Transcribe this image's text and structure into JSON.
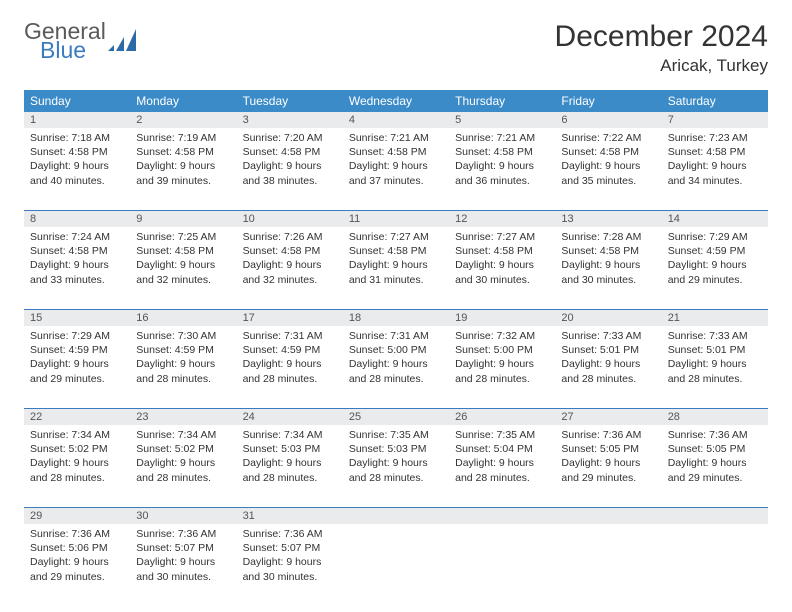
{
  "logo": {
    "general": "General",
    "blue": "Blue"
  },
  "title": "December 2024",
  "location": "Aricak, Turkey",
  "weekdays": [
    "Sunday",
    "Monday",
    "Tuesday",
    "Wednesday",
    "Thursday",
    "Friday",
    "Saturday"
  ],
  "colors": {
    "header_bg": "#3b8bc9",
    "header_text": "#ffffff",
    "daynum_bg": "#e9ebed",
    "rule": "#3b7bbf",
    "logo_blue": "#3b7bbf",
    "text": "#333333"
  },
  "weeks": [
    [
      {
        "n": "1",
        "sr": "7:18 AM",
        "ss": "4:58 PM",
        "dl": "9 hours and 40 minutes."
      },
      {
        "n": "2",
        "sr": "7:19 AM",
        "ss": "4:58 PM",
        "dl": "9 hours and 39 minutes."
      },
      {
        "n": "3",
        "sr": "7:20 AM",
        "ss": "4:58 PM",
        "dl": "9 hours and 38 minutes."
      },
      {
        "n": "4",
        "sr": "7:21 AM",
        "ss": "4:58 PM",
        "dl": "9 hours and 37 minutes."
      },
      {
        "n": "5",
        "sr": "7:21 AM",
        "ss": "4:58 PM",
        "dl": "9 hours and 36 minutes."
      },
      {
        "n": "6",
        "sr": "7:22 AM",
        "ss": "4:58 PM",
        "dl": "9 hours and 35 minutes."
      },
      {
        "n": "7",
        "sr": "7:23 AM",
        "ss": "4:58 PM",
        "dl": "9 hours and 34 minutes."
      }
    ],
    [
      {
        "n": "8",
        "sr": "7:24 AM",
        "ss": "4:58 PM",
        "dl": "9 hours and 33 minutes."
      },
      {
        "n": "9",
        "sr": "7:25 AM",
        "ss": "4:58 PM",
        "dl": "9 hours and 32 minutes."
      },
      {
        "n": "10",
        "sr": "7:26 AM",
        "ss": "4:58 PM",
        "dl": "9 hours and 32 minutes."
      },
      {
        "n": "11",
        "sr": "7:27 AM",
        "ss": "4:58 PM",
        "dl": "9 hours and 31 minutes."
      },
      {
        "n": "12",
        "sr": "7:27 AM",
        "ss": "4:58 PM",
        "dl": "9 hours and 30 minutes."
      },
      {
        "n": "13",
        "sr": "7:28 AM",
        "ss": "4:58 PM",
        "dl": "9 hours and 30 minutes."
      },
      {
        "n": "14",
        "sr": "7:29 AM",
        "ss": "4:59 PM",
        "dl": "9 hours and 29 minutes."
      }
    ],
    [
      {
        "n": "15",
        "sr": "7:29 AM",
        "ss": "4:59 PM",
        "dl": "9 hours and 29 minutes."
      },
      {
        "n": "16",
        "sr": "7:30 AM",
        "ss": "4:59 PM",
        "dl": "9 hours and 28 minutes."
      },
      {
        "n": "17",
        "sr": "7:31 AM",
        "ss": "4:59 PM",
        "dl": "9 hours and 28 minutes."
      },
      {
        "n": "18",
        "sr": "7:31 AM",
        "ss": "5:00 PM",
        "dl": "9 hours and 28 minutes."
      },
      {
        "n": "19",
        "sr": "7:32 AM",
        "ss": "5:00 PM",
        "dl": "9 hours and 28 minutes."
      },
      {
        "n": "20",
        "sr": "7:33 AM",
        "ss": "5:01 PM",
        "dl": "9 hours and 28 minutes."
      },
      {
        "n": "21",
        "sr": "7:33 AM",
        "ss": "5:01 PM",
        "dl": "9 hours and 28 minutes."
      }
    ],
    [
      {
        "n": "22",
        "sr": "7:34 AM",
        "ss": "5:02 PM",
        "dl": "9 hours and 28 minutes."
      },
      {
        "n": "23",
        "sr": "7:34 AM",
        "ss": "5:02 PM",
        "dl": "9 hours and 28 minutes."
      },
      {
        "n": "24",
        "sr": "7:34 AM",
        "ss": "5:03 PM",
        "dl": "9 hours and 28 minutes."
      },
      {
        "n": "25",
        "sr": "7:35 AM",
        "ss": "5:03 PM",
        "dl": "9 hours and 28 minutes."
      },
      {
        "n": "26",
        "sr": "7:35 AM",
        "ss": "5:04 PM",
        "dl": "9 hours and 28 minutes."
      },
      {
        "n": "27",
        "sr": "7:36 AM",
        "ss": "5:05 PM",
        "dl": "9 hours and 29 minutes."
      },
      {
        "n": "28",
        "sr": "7:36 AM",
        "ss": "5:05 PM",
        "dl": "9 hours and 29 minutes."
      }
    ],
    [
      {
        "n": "29",
        "sr": "7:36 AM",
        "ss": "5:06 PM",
        "dl": "9 hours and 29 minutes."
      },
      {
        "n": "30",
        "sr": "7:36 AM",
        "ss": "5:07 PM",
        "dl": "9 hours and 30 minutes."
      },
      {
        "n": "31",
        "sr": "7:36 AM",
        "ss": "5:07 PM",
        "dl": "9 hours and 30 minutes."
      },
      null,
      null,
      null,
      null
    ]
  ],
  "labels": {
    "sunrise": "Sunrise:",
    "sunset": "Sunset:",
    "daylight": "Daylight:"
  }
}
